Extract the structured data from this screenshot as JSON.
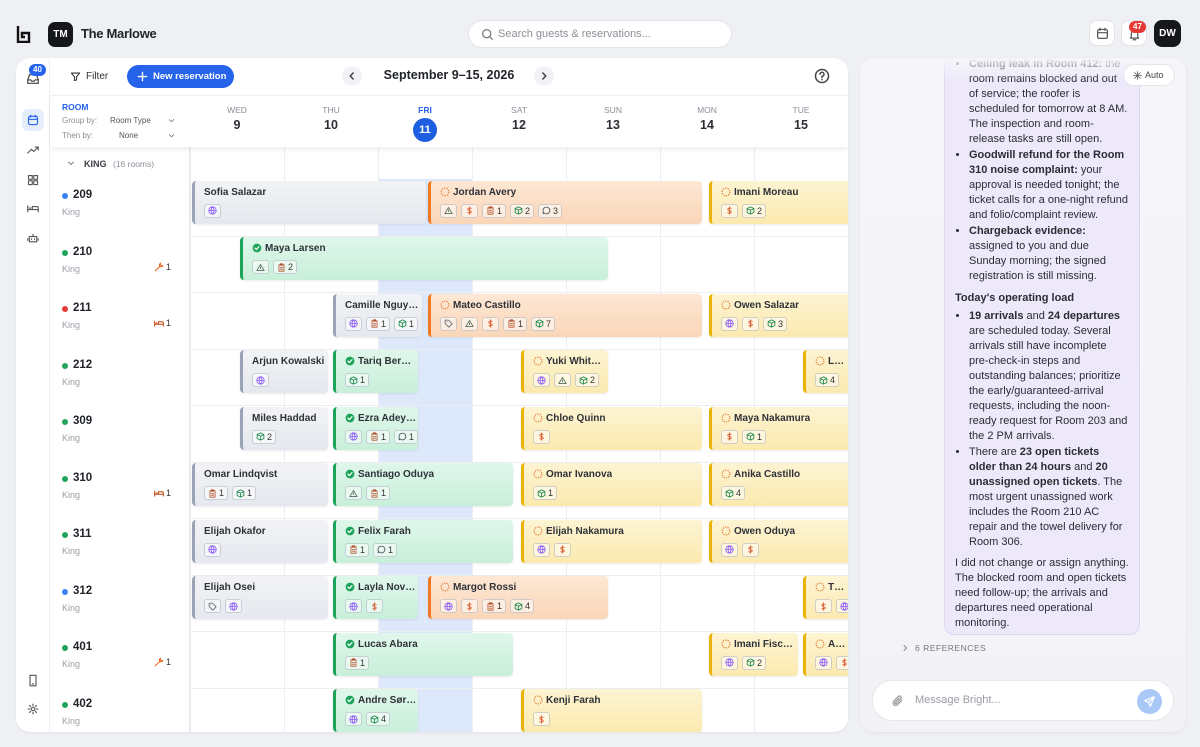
{
  "header": {
    "hotel_initials": "TM",
    "hotel_name": "The Marlowe",
    "search_placeholder": "Search guests & reservations...",
    "notifications": "47",
    "user_initials": "DW"
  },
  "sidebar": {
    "inbox_badge": "40"
  },
  "toolbar": {
    "filter": "Filter",
    "new_reservation": "New reservation",
    "date_range": "September 9–15, 2026"
  },
  "grid": {
    "room_label": "ROOM",
    "group_by_label": "Group by:",
    "group_by": "Room Type",
    "then_by_label": "Then by:",
    "then_by": "None",
    "days": [
      {
        "weekday": "WED",
        "day": "9"
      },
      {
        "weekday": "THU",
        "day": "10"
      },
      {
        "weekday": "FRI",
        "day": "11",
        "selected": true
      },
      {
        "weekday": "SAT",
        "day": "12"
      },
      {
        "weekday": "SUN",
        "day": "13"
      },
      {
        "weekday": "MON",
        "day": "14"
      },
      {
        "weekday": "TUE",
        "day": "15"
      }
    ],
    "group": {
      "name": "KING",
      "count": "(16 rooms)"
    },
    "rooms": [
      {
        "number": "209",
        "type": "King",
        "status": "#3b82f6",
        "reservations": [
          {
            "guest": "Sofia Salazar",
            "state": "past",
            "chips": [
              {
                "icon": "globe"
              }
            ]
          },
          {
            "guest": "Jordan Avery",
            "state": "arriving",
            "chips": [
              {
                "icon": "triangle"
              },
              {
                "icon": "dollar"
              },
              {
                "icon": "doc",
                "count": 1
              },
              {
                "icon": "box",
                "count": 2
              },
              {
                "icon": "chat",
                "count": 3
              }
            ]
          },
          {
            "guest": "Imani Moreau",
            "state": "upcoming",
            "chips": [
              {
                "icon": "dollar"
              },
              {
                "icon": "box",
                "count": 2
              }
            ]
          }
        ]
      },
      {
        "number": "210",
        "type": "King",
        "status": "#22a55b",
        "issue": {
          "icon": "wrench",
          "count": 1
        },
        "reservations": [
          {
            "guest": "Maya Larsen",
            "state": "inhouse",
            "chips": [
              {
                "icon": "triangle"
              },
              {
                "icon": "doc",
                "count": 2
              }
            ]
          }
        ]
      },
      {
        "number": "211",
        "type": "King",
        "status": "#e53935",
        "issue": {
          "icon": "bed",
          "count": 1
        },
        "reservations": [
          {
            "guest": "Camille Nguy…",
            "state": "past",
            "chips": [
              {
                "icon": "globe"
              },
              {
                "icon": "doc",
                "count": 1
              },
              {
                "icon": "box",
                "count": 1
              }
            ]
          },
          {
            "guest": "Mateo Castillo",
            "state": "arriving",
            "chips": [
              {
                "icon": "tag"
              },
              {
                "icon": "triangle"
              },
              {
                "icon": "dollar"
              },
              {
                "icon": "doc",
                "count": 1
              },
              {
                "icon": "box",
                "count": 7
              }
            ]
          },
          {
            "guest": "Owen Salazar",
            "state": "upcoming",
            "chips": [
              {
                "icon": "globe"
              },
              {
                "icon": "dollar"
              },
              {
                "icon": "box",
                "count": 3
              }
            ]
          }
        ]
      },
      {
        "number": "212",
        "type": "King",
        "status": "#22a55b",
        "reservations": [
          {
            "guest": "Arjun Kowalski",
            "state": "past",
            "chips": [
              {
                "icon": "globe"
              }
            ]
          },
          {
            "guest": "Tariq Ber…",
            "state": "inhouse",
            "chips": [
              {
                "icon": "box",
                "count": 1
              }
            ]
          },
          {
            "guest": "Yuki Whit…",
            "state": "upcoming",
            "chips": [
              {
                "icon": "globe"
              },
              {
                "icon": "triangle"
              },
              {
                "icon": "box",
                "count": 2
              }
            ]
          },
          {
            "guest": "L…",
            "state": "upcoming",
            "chips": [
              {
                "icon": "box",
                "count": 4
              }
            ]
          }
        ]
      },
      {
        "number": "309",
        "type": "King",
        "status": "#22a55b",
        "reservations": [
          {
            "guest": "Miles Haddad",
            "state": "past",
            "chips": [
              {
                "icon": "box",
                "count": 2
              }
            ]
          },
          {
            "guest": "Ezra Adey…",
            "state": "inhouse",
            "chips": [
              {
                "icon": "globe"
              },
              {
                "icon": "doc",
                "count": 1
              },
              {
                "icon": "chat",
                "count": 1
              }
            ]
          },
          {
            "guest": "Chloe Quinn",
            "state": "upcoming",
            "chips": [
              {
                "icon": "dollar"
              }
            ]
          },
          {
            "guest": "Maya Nakamura",
            "state": "upcoming",
            "chips": [
              {
                "icon": "dollar"
              },
              {
                "icon": "box",
                "count": 1
              }
            ]
          }
        ]
      },
      {
        "number": "310",
        "type": "King",
        "status": "#22a55b",
        "issue": {
          "icon": "bed",
          "count": 1
        },
        "reservations": [
          {
            "guest": "Omar Lindqvist",
            "state": "past",
            "chips": [
              {
                "icon": "doc",
                "count": 1
              },
              {
                "icon": "box",
                "count": 1
              }
            ]
          },
          {
            "guest": "Santiago Oduya",
            "state": "inhouse",
            "chips": [
              {
                "icon": "triangle"
              },
              {
                "icon": "doc",
                "count": 1
              }
            ]
          },
          {
            "guest": "Omar Ivanova",
            "state": "upcoming",
            "chips": [
              {
                "icon": "box",
                "count": 1
              }
            ]
          },
          {
            "guest": "Anika Castillo",
            "state": "upcoming",
            "chips": [
              {
                "icon": "box",
                "count": 4
              }
            ]
          }
        ]
      },
      {
        "number": "311",
        "type": "King",
        "status": "#22a55b",
        "reservations": [
          {
            "guest": "Elijah Okafor",
            "state": "past",
            "chips": [
              {
                "icon": "globe"
              }
            ]
          },
          {
            "guest": "Felix Farah",
            "state": "inhouse",
            "chips": [
              {
                "icon": "doc",
                "count": 1
              },
              {
                "icon": "chat",
                "count": 1
              }
            ]
          },
          {
            "guest": "Elijah Nakamura",
            "state": "upcoming",
            "chips": [
              {
                "icon": "globe"
              },
              {
                "icon": "dollar"
              }
            ]
          },
          {
            "guest": "Owen Oduya",
            "state": "upcoming",
            "chips": [
              {
                "icon": "globe"
              },
              {
                "icon": "dollar"
              }
            ]
          }
        ]
      },
      {
        "number": "312",
        "type": "King",
        "status": "#3b82f6",
        "reservations": [
          {
            "guest": "Elijah Osei",
            "state": "past",
            "chips": [
              {
                "icon": "tag"
              },
              {
                "icon": "globe"
              }
            ]
          },
          {
            "guest": "Layla Nov…",
            "state": "inhouse",
            "chips": [
              {
                "icon": "globe"
              },
              {
                "icon": "dollar"
              }
            ]
          },
          {
            "guest": "Margot Rossi",
            "state": "arriving",
            "chips": [
              {
                "icon": "globe"
              },
              {
                "icon": "dollar"
              },
              {
                "icon": "doc",
                "count": 1
              },
              {
                "icon": "box",
                "count": 4
              }
            ]
          },
          {
            "guest": "T…",
            "state": "upcoming",
            "chips": [
              {
                "icon": "dollar"
              },
              {
                "icon": "globe"
              }
            ]
          }
        ]
      },
      {
        "number": "401",
        "type": "King",
        "status": "#22a55b",
        "issue": {
          "icon": "wrench",
          "count": 1
        },
        "reservations": [
          {
            "guest": "Lucas Abara",
            "state": "inhouse",
            "chips": [
              {
                "icon": "doc",
                "count": 1
              }
            ]
          },
          {
            "guest": "Imani Fisc…",
            "state": "upcoming",
            "chips": [
              {
                "icon": "globe"
              },
              {
                "icon": "box",
                "count": 2
              }
            ]
          },
          {
            "guest": "A…",
            "state": "upcoming",
            "chips": [
              {
                "icon": "globe"
              },
              {
                "icon": "dollar"
              }
            ]
          }
        ]
      },
      {
        "number": "402",
        "type": "King",
        "status": "#22a55b",
        "reservations": [
          {
            "guest": "Andre Sør…",
            "state": "inhouse",
            "chips": [
              {
                "icon": "globe"
              },
              {
                "icon": "box",
                "count": 4
              }
            ]
          },
          {
            "guest": "Kenji Farah",
            "state": "upcoming",
            "chips": [
              {
                "icon": "dollar"
              }
            ]
          }
        ]
      }
    ]
  },
  "assistant": {
    "auto": "Auto",
    "blocks": [
      {
        "kind": "list",
        "items": [
          [
            {
              "text": "Ceiling leak in Room 412:",
              "bold": true
            },
            {
              "text": " the room remains blocked and out of service; the roofer is scheduled for tomorrow at 8 AM. The inspection and room-release tasks are still open."
            }
          ],
          [
            {
              "text": "Goodwill refund for the Room 310 noise complaint:",
              "bold": true
            },
            {
              "text": " your approval is needed tonight; the ticket calls for a one-night refund and folio/complaint review."
            }
          ],
          [
            {
              "text": "Chargeback evidence:",
              "bold": true
            },
            {
              "text": " assigned to you and due Sunday morning; the signed registration is still missing."
            }
          ]
        ]
      },
      {
        "kind": "heading",
        "text": "Today's operating load"
      },
      {
        "kind": "list",
        "items": [
          [
            {
              "text": "19 arrivals",
              "bold": true
            },
            {
              "text": " and "
            },
            {
              "text": "24 departures",
              "bold": true
            },
            {
              "text": " are scheduled today. Several arrivals still have incomplete pre-check-in steps and outstanding balances; prioritize the early/guaranteed-arrival requests, including the noon-ready request for Room 203 and the 2 PM arrivals."
            }
          ],
          [
            {
              "text": "There are "
            },
            {
              "text": "23 open tickets older than 24 hours",
              "bold": true
            },
            {
              "text": " and "
            },
            {
              "text": "20 unassigned open tickets",
              "bold": true
            },
            {
              "text": ". The most urgent unassigned work includes the Room 210 AC repair and the towel delivery for Room 306."
            }
          ]
        ]
      },
      {
        "kind": "paragraph",
        "text": "I did not change or assign anything. The blocked room and open tickets need follow-up; the arrivals and departures need operational monitoring."
      }
    ],
    "references": "6 REFERENCES",
    "input_placeholder": "Message Bright..."
  }
}
